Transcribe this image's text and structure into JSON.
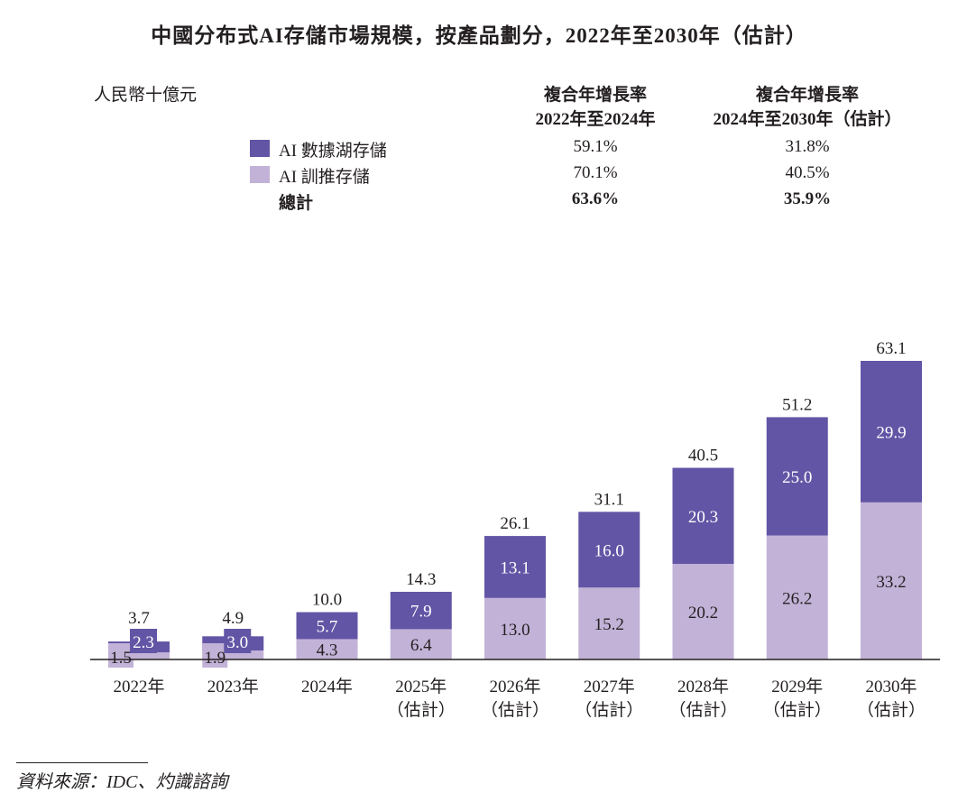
{
  "chart_data": {
    "type": "bar",
    "stacked": true,
    "title": "中國分布式AI存儲市場規模，按產品劃分，2022年至2030年（估計）",
    "ylabel": "人民幣十億元",
    "categories": [
      "2022年",
      "2023年",
      "2024年",
      "2025年\n（估計）",
      "2026年\n（估計）",
      "2027年\n（估計）",
      "2028年\n（估計）",
      "2029年\n（估計）",
      "2030年\n（估計）"
    ],
    "series": [
      {
        "name": "AI 訓推存儲",
        "color": "#c2b2d7",
        "values": [
          1.5,
          1.9,
          4.3,
          6.4,
          13.0,
          15.2,
          20.2,
          26.2,
          33.2
        ]
      },
      {
        "name": "AI 數據湖存儲",
        "color": "#6355a5",
        "values": [
          2.3,
          3.0,
          5.7,
          7.9,
          13.1,
          16.0,
          20.3,
          25.0,
          29.9
        ]
      }
    ],
    "totals": [
      "3.7",
      "4.9",
      "10.0",
      "14.3",
      "26.1",
      "31.1",
      "40.5",
      "51.2",
      "63.1"
    ],
    "ylim": [
      0,
      65
    ],
    "grid": false
  },
  "cagr_table": {
    "unit": "人民幣十億元",
    "headers": [
      [
        "複合年增長率",
        "2022年至2024年"
      ],
      [
        "複合年增長率",
        "2024年至2030年（估計）"
      ]
    ],
    "rows": [
      {
        "label": "AI 數據湖存儲",
        "color": "#6355a5",
        "c1": "59.1%",
        "c2": "31.8%"
      },
      {
        "label": "AI 訓推存儲",
        "color": "#c2b2d7",
        "c1": "70.1%",
        "c2": "40.5%"
      },
      {
        "label": "總計",
        "c1": "63.6%",
        "c2": "35.9%"
      }
    ]
  },
  "source": "資料來源：IDC、灼識諮詢"
}
